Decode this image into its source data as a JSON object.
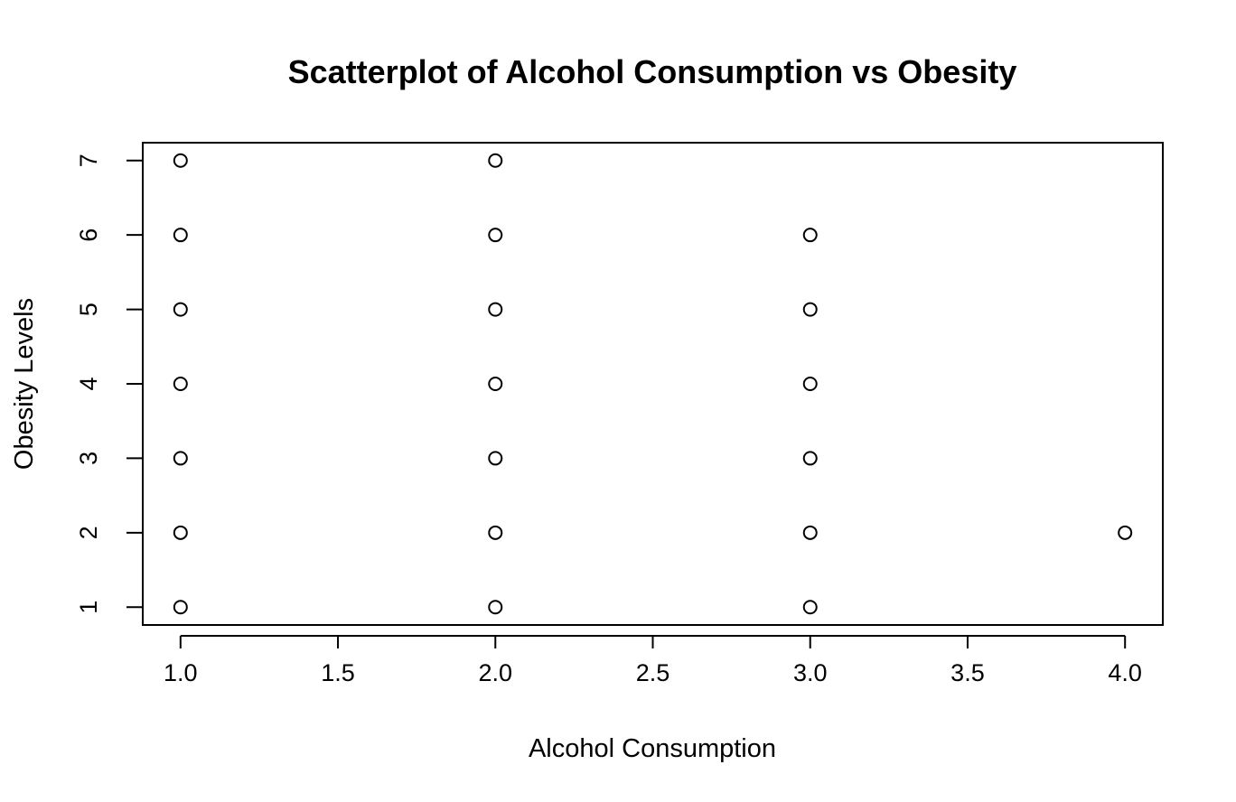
{
  "chart_data": {
    "type": "scatter",
    "title": "Scatterplot of Alcohol Consumption vs Obesity",
    "xlabel": "Alcohol Consumption",
    "ylabel": "Obesity Levels",
    "xlim": [
      0.88,
      4.12
    ],
    "ylim": [
      0.76,
      7.24
    ],
    "x_ticks": [
      1.0,
      1.5,
      2.0,
      2.5,
      3.0,
      3.5,
      4.0
    ],
    "x_tick_labels": [
      "1.0",
      "1.5",
      "2.0",
      "2.5",
      "3.0",
      "3.5",
      "4.0"
    ],
    "y_ticks": [
      1,
      2,
      3,
      4,
      5,
      6,
      7
    ],
    "y_tick_labels": [
      "1",
      "2",
      "3",
      "4",
      "5",
      "6",
      "7"
    ],
    "grid": false,
    "marker": "open-circle",
    "color": "#000000",
    "points": [
      {
        "x": 1,
        "y": 1
      },
      {
        "x": 1,
        "y": 2
      },
      {
        "x": 1,
        "y": 3
      },
      {
        "x": 1,
        "y": 4
      },
      {
        "x": 1,
        "y": 5
      },
      {
        "x": 1,
        "y": 6
      },
      {
        "x": 1,
        "y": 7
      },
      {
        "x": 2,
        "y": 1
      },
      {
        "x": 2,
        "y": 2
      },
      {
        "x": 2,
        "y": 3
      },
      {
        "x": 2,
        "y": 4
      },
      {
        "x": 2,
        "y": 5
      },
      {
        "x": 2,
        "y": 6
      },
      {
        "x": 2,
        "y": 7
      },
      {
        "x": 3,
        "y": 1
      },
      {
        "x": 3,
        "y": 2
      },
      {
        "x": 3,
        "y": 3
      },
      {
        "x": 3,
        "y": 4
      },
      {
        "x": 3,
        "y": 5
      },
      {
        "x": 3,
        "y": 6
      },
      {
        "x": 4,
        "y": 2
      }
    ]
  }
}
